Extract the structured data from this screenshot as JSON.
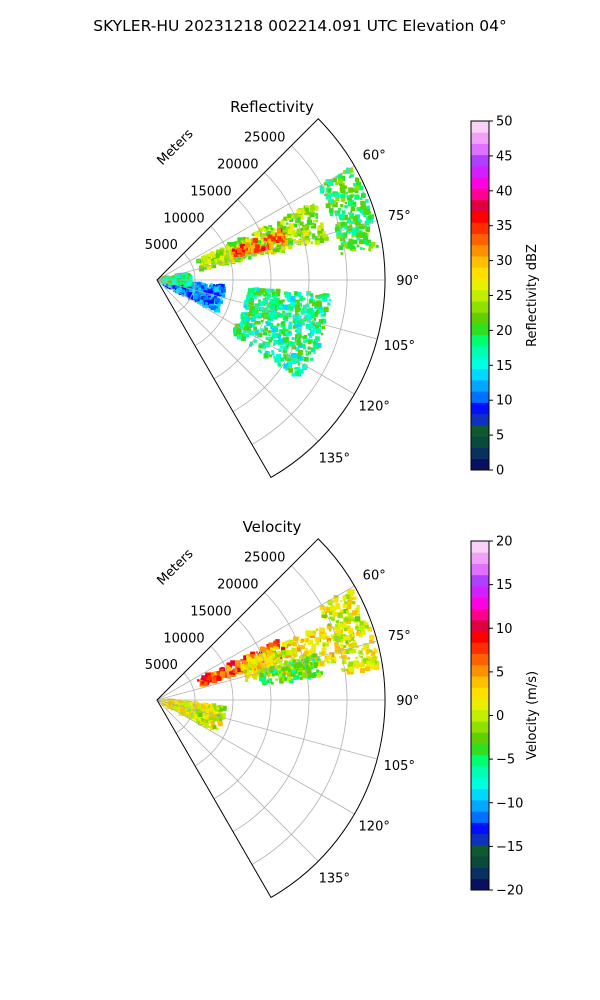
{
  "figure": {
    "suptitle": "SKYLER-HU  20231218  002214.091 UTC Elevation 04°"
  },
  "chart_data": [
    {
      "type": "polar-sector",
      "title": "Reflectivity",
      "range_label": "Meters",
      "theta_range_deg": [
        45,
        150
      ],
      "r_range": [
        0,
        30000
      ],
      "grid": true,
      "radial_ticks": [
        5000,
        10000,
        15000,
        20000,
        25000
      ],
      "radial_tick_labels": [
        "5000",
        "10000",
        "15000",
        "20000",
        "25000"
      ],
      "angle_ticks": [
        60,
        75,
        90,
        105,
        120,
        135
      ],
      "angle_tick_labels": [
        "60°",
        "75°",
        "90°",
        "105°",
        "120°",
        "135°"
      ],
      "colorbar": {
        "label": "Reflectivity dBZ",
        "range": [
          0,
          50
        ],
        "ticks": [
          0,
          5,
          10,
          15,
          20,
          25,
          30,
          35,
          40,
          45,
          50
        ],
        "tick_labels": [
          "0",
          "5",
          "10",
          "15",
          "20",
          "25",
          "30",
          "35",
          "40",
          "45",
          "50"
        ],
        "colors": [
          "#0a1060",
          "#083060",
          "#0a4a3a",
          "#0d5a30",
          "#1030c0",
          "#0010ff",
          "#0070ff",
          "#00a8ff",
          "#00d8ff",
          "#00ffe0",
          "#00ffb0",
          "#00ff70",
          "#30e020",
          "#60d000",
          "#90e000",
          "#c0f000",
          "#e8f000",
          "#ffe000",
          "#ffc000",
          "#ff9000",
          "#ff6000",
          "#ff3000",
          "#ff0000",
          "#e00040",
          "#ff0090",
          "#ff00e0",
          "#d020ff",
          "#b040ff",
          "#e070ff",
          "#f0a0f8",
          "#f8d0f8"
        ]
      },
      "echo_regions": [
        {
          "name": "main-band",
          "theta": [
            64,
            77
          ],
          "r": [
            6000,
            23000
          ],
          "level": 24
        },
        {
          "name": "core",
          "theta": [
            68,
            74
          ],
          "r": [
            10500,
            18000
          ],
          "level": 33
        },
        {
          "name": "far-edge",
          "theta": [
            60,
            82
          ],
          "r": [
            24500,
            29500
          ],
          "level": 20
        },
        {
          "name": "near-field",
          "theta": [
            95,
            118
          ],
          "r": [
            1000,
            9000
          ],
          "level": 11
        },
        {
          "name": "near-ring",
          "theta": [
            78,
            100
          ],
          "r": [
            500,
            4500
          ],
          "level": 18
        },
        {
          "name": "scattered",
          "theta": [
            95,
            125
          ],
          "r": [
            12000,
            23000
          ],
          "level": 18
        }
      ]
    },
    {
      "type": "polar-sector",
      "title": "Velocity",
      "range_label": "Meters",
      "theta_range_deg": [
        45,
        150
      ],
      "r_range": [
        0,
        30000
      ],
      "grid": true,
      "radial_ticks": [
        5000,
        10000,
        15000,
        20000,
        25000
      ],
      "radial_tick_labels": [
        "5000",
        "10000",
        "15000",
        "20000",
        "25000"
      ],
      "angle_ticks": [
        60,
        75,
        90,
        105,
        120,
        135
      ],
      "angle_tick_labels": [
        "60°",
        "75°",
        "90°",
        "105°",
        "120°",
        "135°"
      ],
      "colorbar": {
        "label": "Velocity (m/s)",
        "range": [
          -20,
          20
        ],
        "ticks": [
          -20,
          -15,
          -10,
          -5,
          0,
          5,
          10,
          15,
          20
        ],
        "tick_labels": [
          "−20",
          "−15",
          "−10",
          "−5",
          "0",
          "5",
          "10",
          "15",
          "20"
        ],
        "colors": [
          "#0a1060",
          "#083060",
          "#0a4a3a",
          "#0d5a30",
          "#1030c0",
          "#0010ff",
          "#0070ff",
          "#00a8ff",
          "#00d8ff",
          "#00ffe0",
          "#00ffb0",
          "#00ff70",
          "#30e020",
          "#60d000",
          "#90e000",
          "#c0f000",
          "#e8f000",
          "#ffe000",
          "#ffc000",
          "#ff9000",
          "#ff6000",
          "#ff3000",
          "#ff0000",
          "#e00040",
          "#ff0090",
          "#ff00e0",
          "#d020ff",
          "#b040ff",
          "#e070ff",
          "#f0a0f8",
          "#f8d0f8"
        ]
      },
      "echo_regions": [
        {
          "name": "near-side",
          "theta": [
            64,
            72
          ],
          "r": [
            6000,
            18000
          ],
          "level": 7
        },
        {
          "name": "mid-band",
          "theta": [
            66,
            78
          ],
          "r": [
            12000,
            24000
          ],
          "level": 2
        },
        {
          "name": "inner-green",
          "theta": [
            74,
            82
          ],
          "r": [
            14000,
            22000
          ],
          "level": -3
        },
        {
          "name": "far-edge",
          "theta": [
            60,
            82
          ],
          "r": [
            24500,
            29500
          ],
          "level": 1
        },
        {
          "name": "near-red",
          "theta": [
            96,
            104
          ],
          "r": [
            1500,
            6500
          ],
          "level": 11
        },
        {
          "name": "near-field",
          "theta": [
            95,
            118
          ],
          "r": [
            1000,
            9000
          ],
          "level": 1
        }
      ]
    }
  ]
}
